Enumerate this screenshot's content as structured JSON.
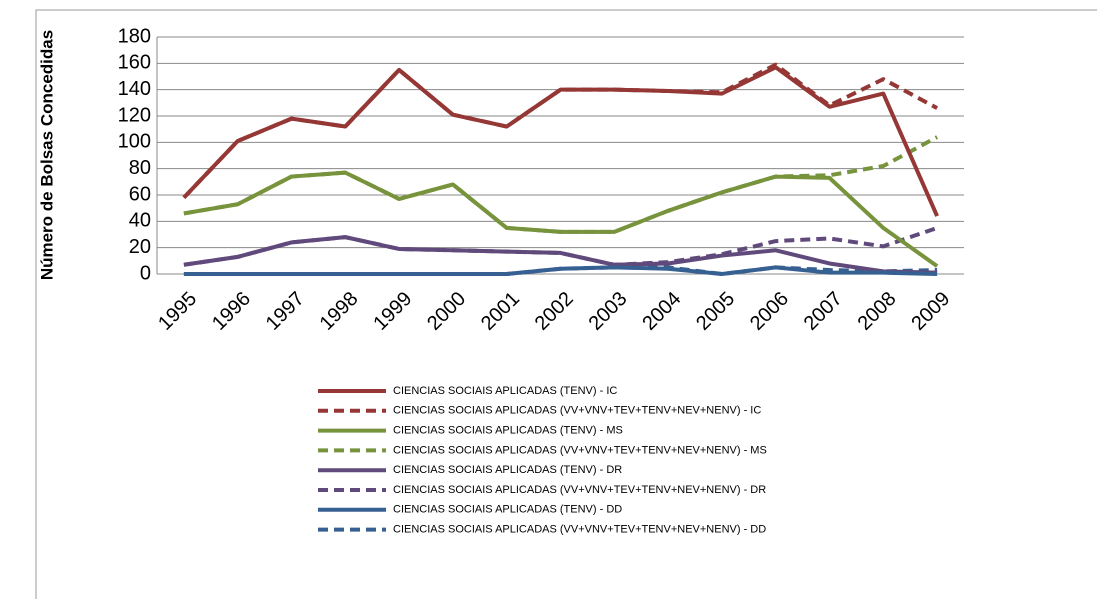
{
  "chart_data": {
    "type": "line",
    "y_label": "Número de Bolsas Concedidas",
    "categories": [
      "1995",
      "1996",
      "1997",
      "1998",
      "1999",
      "2000",
      "2001",
      "2002",
      "2003",
      "2004",
      "2005",
      "2006",
      "2007",
      "2008",
      "2009"
    ],
    "ylim": [
      0,
      180
    ],
    "yticks": [
      0,
      20,
      40,
      60,
      80,
      100,
      120,
      140,
      160,
      180
    ],
    "grid": true,
    "series": [
      {
        "name": "CIENCIAS SOCIAIS APLICADAS (TENV) - IC",
        "color": "#953735",
        "dash": false,
        "values": [
          58,
          101,
          118,
          112,
          155,
          121,
          112,
          140,
          140,
          139,
          137,
          157,
          127,
          137,
          44
        ]
      },
      {
        "name": "CIENCIAS SOCIAIS APLICADAS (VV+VNV+TEV+TENV+NEV+NENV) - IC",
        "color": "#953735",
        "dash": true,
        "values": [
          58,
          101,
          118,
          112,
          155,
          121,
          112,
          140,
          140,
          139,
          138,
          159,
          128,
          148,
          126
        ]
      },
      {
        "name": "CIENCIAS SOCIAIS APLICADAS (TENV) - MS",
        "color": "#77933c",
        "dash": false,
        "values": [
          46,
          53,
          74,
          77,
          57,
          68,
          35,
          32,
          32,
          48,
          62,
          74,
          73,
          35,
          6
        ]
      },
      {
        "name": "CIENCIAS SOCIAIS APLICADAS (VV+VNV+TEV+TENV+NEV+NENV) - MS",
        "color": "#77933c",
        "dash": true,
        "values": [
          46,
          53,
          74,
          77,
          57,
          68,
          35,
          32,
          32,
          48,
          62,
          74,
          75,
          82,
          104
        ]
      },
      {
        "name": "CIENCIAS SOCIAIS APLICADAS (TENV) - DR",
        "color": "#604a7b",
        "dash": false,
        "values": [
          7,
          13,
          24,
          28,
          19,
          18,
          17,
          16,
          7,
          8,
          14,
          18,
          8,
          2,
          1
        ]
      },
      {
        "name": "CIENCIAS SOCIAIS APLICADAS (VV+VNV+TEV+TENV+NEV+NENV) - DR",
        "color": "#604a7b",
        "dash": true,
        "values": [
          7,
          13,
          24,
          28,
          19,
          18,
          17,
          16,
          7,
          9,
          15,
          25,
          27,
          21,
          35
        ]
      },
      {
        "name": "CIENCIAS SOCIAIS APLICADAS (TENV) - DD",
        "color": "#376092",
        "dash": false,
        "values": [
          0,
          0,
          0,
          0,
          0,
          0,
          0,
          4,
          5,
          4,
          0,
          5,
          1,
          1,
          0
        ]
      },
      {
        "name": "CIENCIAS SOCIAIS APLICADAS (VV+VNV+TEV+TENV+NEV+NENV) - DD",
        "color": "#376092",
        "dash": true,
        "values": [
          0,
          0,
          0,
          0,
          0,
          0,
          0,
          4,
          5,
          5,
          0,
          5,
          3,
          2,
          3
        ]
      }
    ]
  }
}
